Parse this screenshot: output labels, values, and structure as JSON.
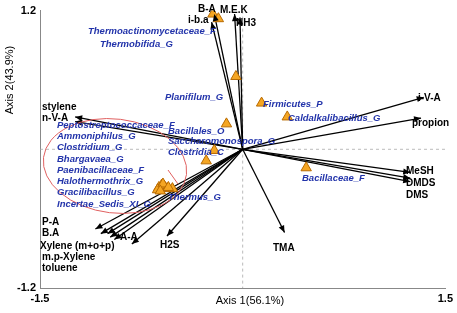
{
  "chart_data": {
    "type": "biplot",
    "x_label": "Axis 1(56.1%)",
    "y_label": "Axis 2(43.9%)",
    "xlim": [
      -1.5,
      1.5
    ],
    "xticks": [
      -1.5,
      1.5
    ],
    "ylim": [
      -1.2,
      1.2
    ],
    "yticks": [
      -1.2,
      1.2
    ],
    "grid": false,
    "origin": [
      0,
      0
    ],
    "series": [
      {
        "type": "scatter",
        "marker": "triangle",
        "color": "#f5a623",
        "labels": [
          "Thermoactinomycetaceae_F",
          "Thermobifida_G",
          "Planifilum_G",
          "Bacillales_O",
          "Firmicutes_P",
          "Caldalkalibacillus_G",
          "Saccharomonospora_G",
          "Clostridia_C",
          "Thermus_G",
          "Bacillaceae_F",
          "Peptostreptococcaceae_F",
          "Ammoniphilus_G",
          "Clostridium_G",
          "Bhargavaea_G",
          "Paenibacillaceae_F",
          "Halothermothrix_G",
          "Gracilibacillus_G",
          "Incertae_Sedis_XI_G"
        ],
        "x": [
          -0.22,
          -0.18,
          -0.05,
          -0.12,
          0.14,
          0.33,
          -0.21,
          -0.27,
          -0.52,
          0.47,
          -0.62,
          -0.6,
          -0.58,
          -0.56,
          -0.63,
          -0.59,
          -0.55,
          -0.61
        ],
        "y": [
          1.17,
          1.13,
          0.63,
          0.22,
          0.4,
          0.28,
          -0.01,
          -0.1,
          -0.34,
          -0.16,
          -0.33,
          -0.31,
          -0.32,
          -0.34,
          -0.35,
          -0.3,
          -0.33,
          -0.36
        ]
      },
      {
        "type": "arrow",
        "color": "#000000",
        "labels": [
          "B-A",
          "i-b.a",
          "M.E.K",
          "NH3",
          "stylene",
          "n-V-A",
          "propion",
          "i-V-A",
          "MeSH",
          "DMDS",
          "DMS",
          "TMA",
          "H2S",
          "P-A",
          "B.A",
          "A-A",
          "Xylene (m+o+p)",
          "m.p-Xylene",
          "toluene"
        ],
        "x": [
          -0.21,
          -0.23,
          -0.06,
          -0.02,
          -1.24,
          -1.24,
          1.32,
          1.34,
          1.24,
          1.24,
          1.24,
          0.31,
          -0.56,
          -1.09,
          -1.05,
          -0.82,
          -1.0,
          -0.98,
          -0.95
        ],
        "y": [
          1.17,
          1.1,
          1.17,
          1.14,
          0.28,
          0.24,
          0.27,
          0.45,
          -0.2,
          -0.25,
          -0.28,
          -0.72,
          -0.75,
          -0.69,
          -0.73,
          -0.82,
          -0.73,
          -0.76,
          -0.78
        ]
      }
    ]
  }
}
